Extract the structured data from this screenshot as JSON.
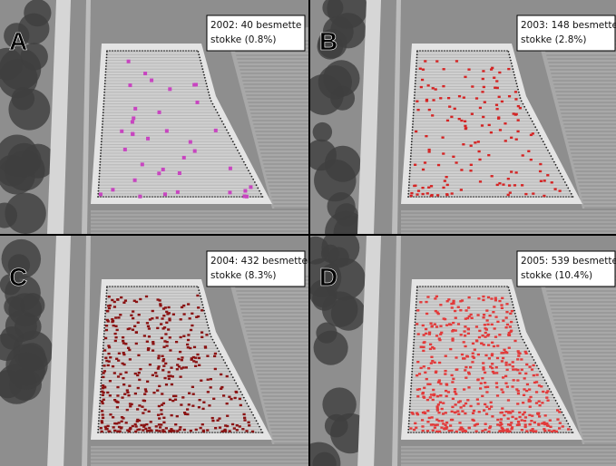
{
  "panels": [
    {
      "letter": "A",
      "caption": [
        "2002: 40 besmette",
        "stokke (0.8%)"
      ]
    },
    {
      "letter": "B",
      "caption": [
        "2003: 148 besmette",
        "stokke (2.8%)"
      ]
    },
    {
      "letter": "C",
      "caption": [
        "2004: 432 besmette",
        "stokke (8.3%)"
      ]
    },
    {
      "letter": "D",
      "caption": [
        "2005: 539 besmette",
        "stokke (10.4%)"
      ]
    }
  ]
}
